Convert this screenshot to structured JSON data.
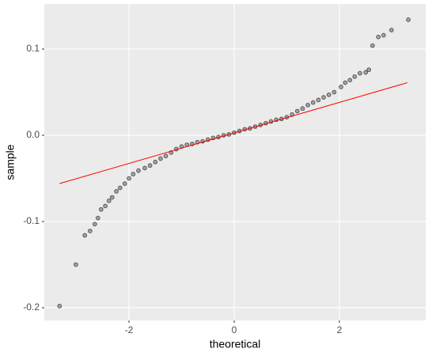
{
  "chart_data": {
    "type": "scatter",
    "x_label": "theoretical",
    "y_label": "sample",
    "x": [
      -3.32,
      -3.01,
      -2.84,
      -2.74,
      -2.65,
      -2.59,
      -2.53,
      -2.45,
      -2.38,
      -2.32,
      -2.24,
      -2.17,
      -2.08,
      -2.0,
      -1.92,
      -1.82,
      -1.7,
      -1.6,
      -1.5,
      -1.4,
      -1.3,
      -1.2,
      -1.1,
      -1.0,
      -0.9,
      -0.8,
      -0.7,
      -0.6,
      -0.5,
      -0.4,
      -0.3,
      -0.2,
      -0.1,
      0,
      0.1,
      0.2,
      0.3,
      0.4,
      0.5,
      0.6,
      0.7,
      0.8,
      0.9,
      1.0,
      1.1,
      1.2,
      1.3,
      1.4,
      1.5,
      1.6,
      1.7,
      1.8,
      1.9,
      2.03,
      2.11,
      2.2,
      2.29,
      2.39,
      2.5,
      2.56,
      2.63,
      2.74,
      2.84,
      2.99,
      3.31
    ],
    "values": [
      -0.198,
      -0.15,
      -0.116,
      -0.111,
      -0.103,
      -0.096,
      -0.086,
      -0.082,
      -0.076,
      -0.072,
      -0.065,
      -0.061,
      -0.056,
      -0.05,
      -0.045,
      -0.041,
      -0.038,
      -0.035,
      -0.031,
      -0.027,
      -0.024,
      -0.02,
      -0.016,
      -0.013,
      -0.011,
      -0.01,
      -0.008,
      -0.007,
      -0.005,
      -0.003,
      -0.002,
      0.0,
      0.001,
      0.003,
      0.005,
      0.007,
      0.008,
      0.01,
      0.012,
      0.014,
      0.016,
      0.018,
      0.019,
      0.021,
      0.024,
      0.028,
      0.031,
      0.035,
      0.038,
      0.041,
      0.044,
      0.047,
      0.05,
      0.056,
      0.061,
      0.064,
      0.068,
      0.072,
      0.073,
      0.076,
      0.104,
      0.114,
      0.116,
      0.122,
      0.134
    ],
    "color": "#000000",
    "reference_line": {
      "x": [
        -3.32,
        3.29
      ],
      "y": [
        -0.056,
        0.061
      ],
      "color": "#ff0000"
    },
    "xlim": [
      -3.61,
      3.64
    ],
    "ylim": [
      -0.2147,
      0.1523
    ],
    "xticks": [
      -2,
      0,
      2
    ],
    "yticks": [
      -0.2,
      -0.1,
      {
        "value": 0,
        "label": "0.0"
      },
      0.1
    ],
    "grid": true
  }
}
